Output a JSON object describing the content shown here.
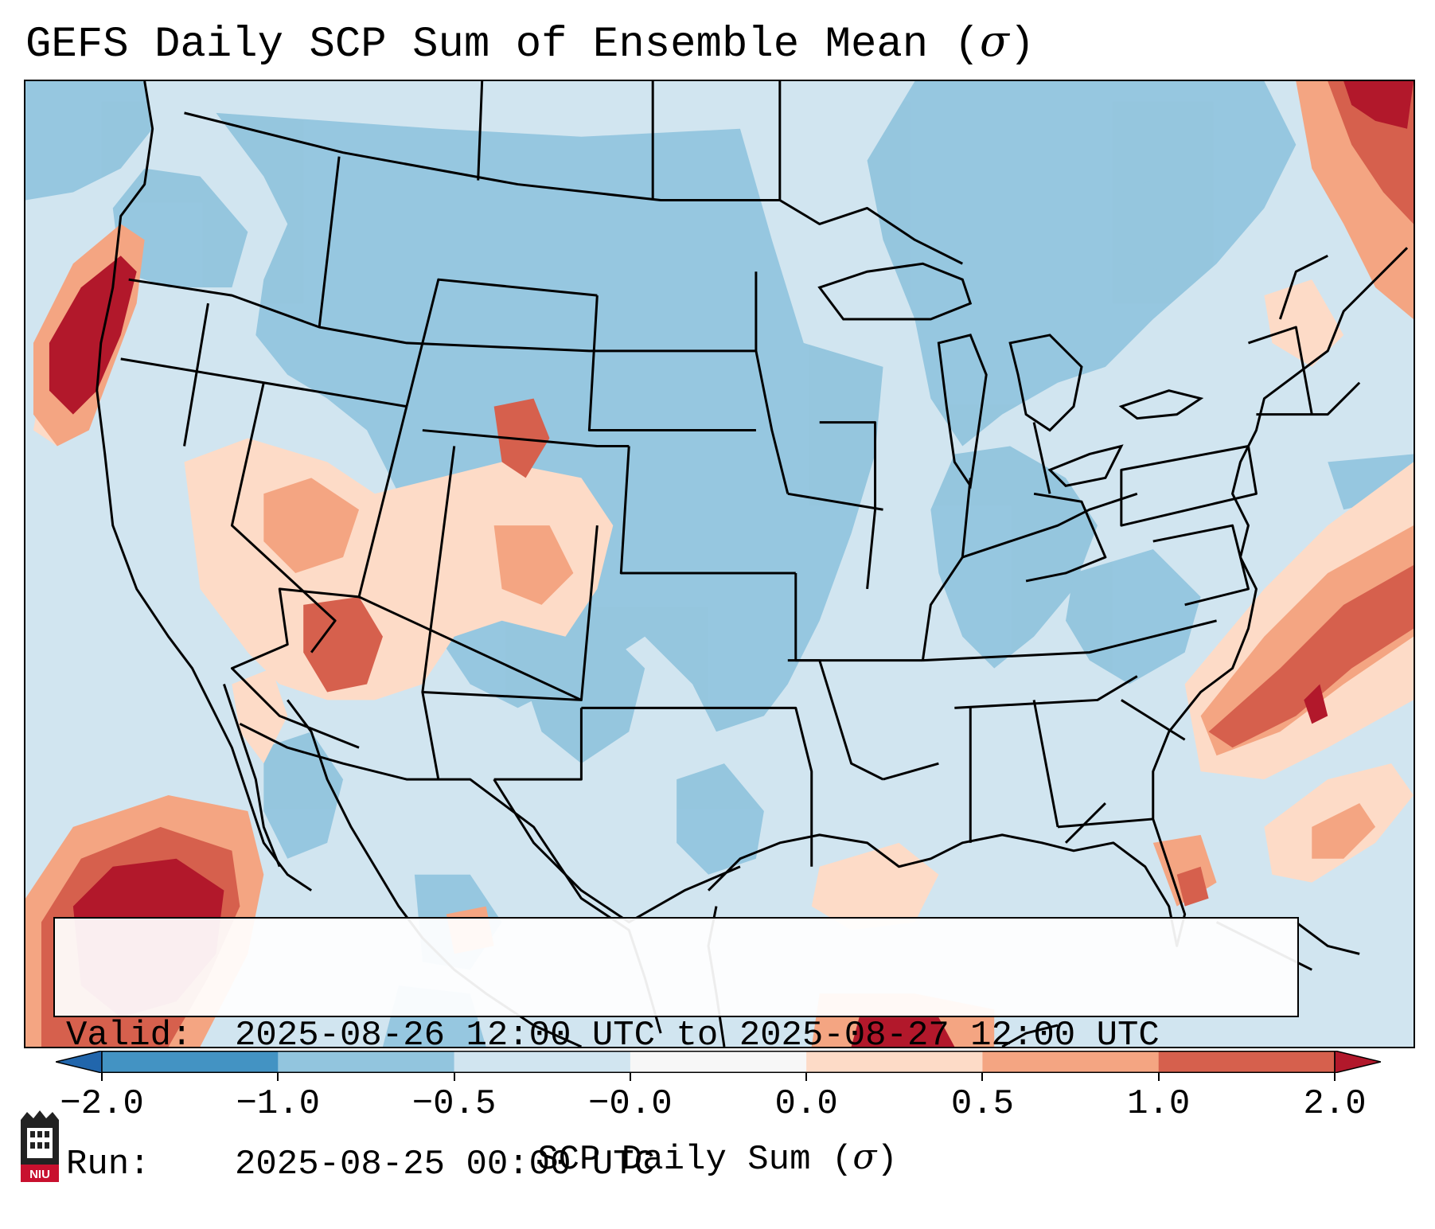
{
  "title": {
    "text": "GEFS Daily SCP Sum of Ensemble Mean (",
    "symbol": "σ",
    "close": ")"
  },
  "info": {
    "valid_label": "Valid:",
    "valid_value": "2025-08-26 12:00 UTC to 2025-08-27 12:00 UTC",
    "run_label": "Run:",
    "run_value": "2025-08-25 00:00 UTC"
  },
  "colorbar": {
    "label_text": "SCP Daily Sum (",
    "label_symbol": "σ",
    "label_close": ")",
    "ticks": [
      "−2.0",
      "−1.0",
      "−0.5",
      "−0.0",
      "0.0",
      "0.5",
      "1.0",
      "2.0"
    ],
    "bins": [
      {
        "range": "<-2.0",
        "color": "#2166ac"
      },
      {
        "range": "-2.0 to -1.0",
        "color": "#4393c3"
      },
      {
        "range": "-1.0 to -0.5",
        "color": "#92c5de"
      },
      {
        "range": "-0.5 to -0.0",
        "color": "#d1e5f0"
      },
      {
        "range": "-0.0 to 0.0",
        "color": "#f7f7f7"
      },
      {
        "range": "0.0 to 0.5",
        "color": "#fddbc7"
      },
      {
        "range": "0.5 to 1.0",
        "color": "#f4a582"
      },
      {
        "range": "1.0 to 2.0",
        "color": "#d6604d"
      },
      {
        "range": ">2.0",
        "color": "#b2182b"
      }
    ]
  },
  "map": {
    "region": "Contiguous United States",
    "background_color": "#d1e5f0",
    "boundary_color": "#000000"
  },
  "logo": {
    "text": "NIU",
    "color": "#c8102e"
  }
}
